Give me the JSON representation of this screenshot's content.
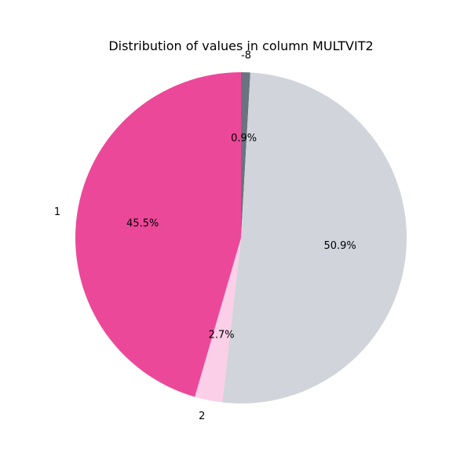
{
  "chart_data": {
    "type": "pie",
    "title": "Distribution of values in column MULTVIT2",
    "start_angle_deg": 90,
    "direction": "clockwise",
    "slices": [
      {
        "label": "-8",
        "value": 0.9,
        "pct_label": "0.9%",
        "color": "#6b7280"
      },
      {
        "label": "",
        "value": 50.9,
        "pct_label": "50.9%",
        "color": "#d1d5db"
      },
      {
        "label": "2",
        "value": 2.7,
        "pct_label": "2.7%",
        "color": "#fbcfe8"
      },
      {
        "label": "1",
        "value": 45.5,
        "pct_label": "45.5%",
        "color": "#ec4899"
      }
    ]
  }
}
